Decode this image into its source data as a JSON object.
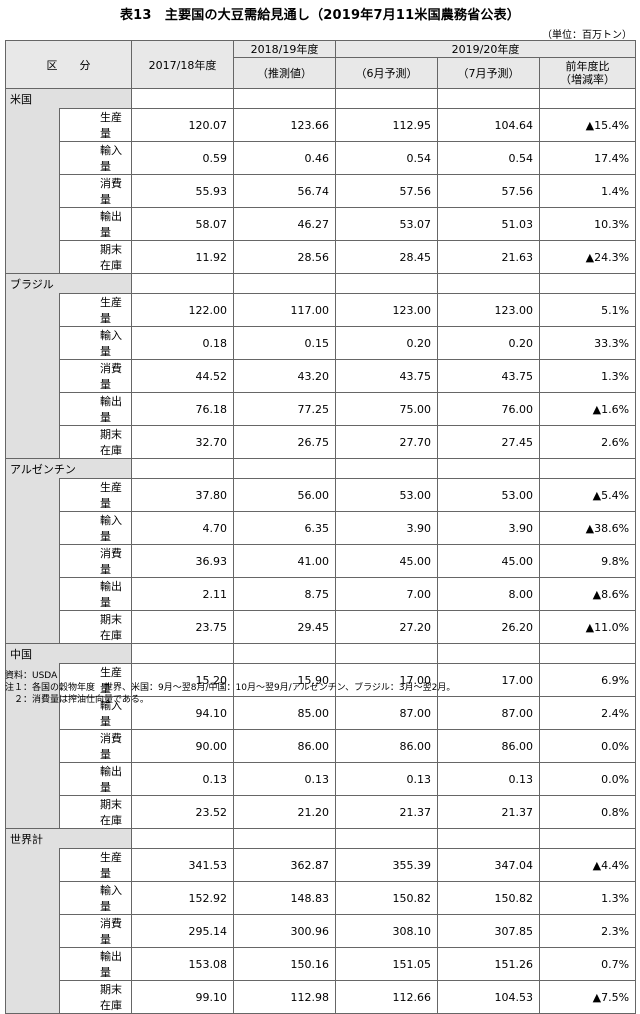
{
  "title": "表13　主要国の大豆需給見通し（2019年7月11米国農務省公表）",
  "unit": "（単位：百万トン）",
  "headers": {
    "category": "区　　分",
    "col2017": "2017/18年度",
    "col2018_top": "2018/19年度",
    "col2018_sub": "（推測値）",
    "col2019_top": "2019/20年度",
    "col2019_june": "（6月予測）",
    "col2019_july": "（7月予測）",
    "col_change_line1": "前年度比",
    "col_change_line2": "（増減率）"
  },
  "groups": [
    {
      "name": "米国",
      "rows": [
        {
          "item": "生産量",
          "v2017": "120.07",
          "v2018": "123.66",
          "june": "112.95",
          "july": "104.64",
          "change": "▲15.4%"
        },
        {
          "item": "輸入量",
          "v2017": "0.59",
          "v2018": "0.46",
          "june": "0.54",
          "july": "0.54",
          "change": "17.4%"
        },
        {
          "item": "消費量",
          "v2017": "55.93",
          "v2018": "56.74",
          "june": "57.56",
          "july": "57.56",
          "change": "1.4%"
        },
        {
          "item": "輸出量",
          "v2017": "58.07",
          "v2018": "46.27",
          "june": "53.07",
          "july": "51.03",
          "change": "10.3%"
        },
        {
          "item": "期末在庫",
          "v2017": "11.92",
          "v2018": "28.56",
          "june": "28.45",
          "july": "21.63",
          "change": "▲24.3%"
        }
      ]
    },
    {
      "name": "ブラジル",
      "rows": [
        {
          "item": "生産量",
          "v2017": "122.00",
          "v2018": "117.00",
          "june": "123.00",
          "july": "123.00",
          "change": "5.1%"
        },
        {
          "item": "輸入量",
          "v2017": "0.18",
          "v2018": "0.15",
          "june": "0.20",
          "july": "0.20",
          "change": "33.3%"
        },
        {
          "item": "消費量",
          "v2017": "44.52",
          "v2018": "43.20",
          "june": "43.75",
          "july": "43.75",
          "change": "1.3%"
        },
        {
          "item": "輸出量",
          "v2017": "76.18",
          "v2018": "77.25",
          "june": "75.00",
          "july": "76.00",
          "change": "▲1.6%"
        },
        {
          "item": "期末在庫",
          "v2017": "32.70",
          "v2018": "26.75",
          "june": "27.70",
          "july": "27.45",
          "change": "2.6%"
        }
      ]
    },
    {
      "name": "アルゼンチン",
      "rows": [
        {
          "item": "生産量",
          "v2017": "37.80",
          "v2018": "56.00",
          "june": "53.00",
          "july": "53.00",
          "change": "▲5.4%"
        },
        {
          "item": "輸入量",
          "v2017": "4.70",
          "v2018": "6.35",
          "june": "3.90",
          "july": "3.90",
          "change": "▲38.6%"
        },
        {
          "item": "消費量",
          "v2017": "36.93",
          "v2018": "41.00",
          "june": "45.00",
          "july": "45.00",
          "change": "9.8%"
        },
        {
          "item": "輸出量",
          "v2017": "2.11",
          "v2018": "8.75",
          "june": "7.00",
          "july": "8.00",
          "change": "▲8.6%"
        },
        {
          "item": "期末在庫",
          "v2017": "23.75",
          "v2018": "29.45",
          "june": "27.20",
          "july": "26.20",
          "change": "▲11.0%"
        }
      ]
    },
    {
      "name": "中国",
      "rows": [
        {
          "item": "生産量",
          "v2017": "15.20",
          "v2018": "15.90",
          "june": "17.00",
          "july": "17.00",
          "change": "6.9%"
        },
        {
          "item": "輸入量",
          "v2017": "94.10",
          "v2018": "85.00",
          "june": "87.00",
          "july": "87.00",
          "change": "2.4%"
        },
        {
          "item": "消費量",
          "v2017": "90.00",
          "v2018": "86.00",
          "june": "86.00",
          "july": "86.00",
          "change": "0.0%"
        },
        {
          "item": "輸出量",
          "v2017": "0.13",
          "v2018": "0.13",
          "june": "0.13",
          "july": "0.13",
          "change": "0.0%"
        },
        {
          "item": "期末在庫",
          "v2017": "23.52",
          "v2018": "21.20",
          "june": "21.37",
          "july": "21.37",
          "change": "0.8%"
        }
      ]
    },
    {
      "name": "世界計",
      "rows": [
        {
          "item": "生産量",
          "v2017": "341.53",
          "v2018": "362.87",
          "june": "355.39",
          "july": "347.04",
          "change": "▲4.4%"
        },
        {
          "item": "輸入量",
          "v2017": "152.92",
          "v2018": "148.83",
          "june": "150.82",
          "july": "150.82",
          "change": "1.3%"
        },
        {
          "item": "消費量",
          "v2017": "295.14",
          "v2018": "300.96",
          "june": "308.10",
          "july": "307.85",
          "change": "2.3%"
        },
        {
          "item": "輸出量",
          "v2017": "153.08",
          "v2018": "150.16",
          "june": "151.05",
          "july": "151.26",
          "change": "0.7%"
        },
        {
          "item": "期末在庫",
          "v2017": "99.10",
          "v2018": "112.98",
          "june": "112.66",
          "july": "104.53",
          "change": "▲7.5%"
        }
      ]
    }
  ],
  "footnotes": {
    "source": "資料：USDA",
    "note1": "注１：各国の穀物年度　世界、米国：9月～翌8月/中国：10月～翌9月/アルゼンチン、ブラジル：3月～翌2月。",
    "note2": "　２：消費量は搾油仕向量である。"
  }
}
